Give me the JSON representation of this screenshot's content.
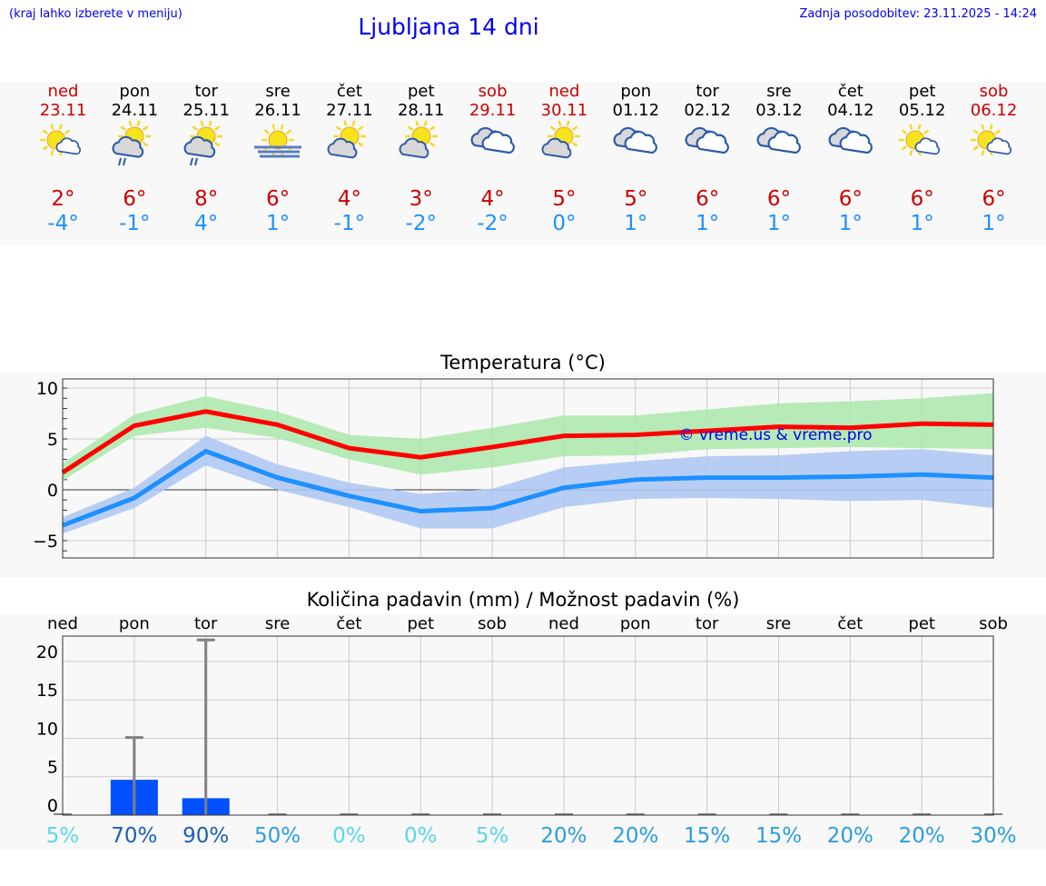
{
  "header": {
    "hint": "(kraj lahko izberete v meniju)",
    "title": "Ljubljana 14 dni",
    "updated": "Zadnja posodobitev: 23.11.2025 - 14:24"
  },
  "colors": {
    "weekend": "#cc0000",
    "weekday": "#000000",
    "max_temp": "#cc0000",
    "min_temp": "#1e90ff",
    "max_line": "#ff0000",
    "min_line": "#1e90ff",
    "max_band": "#aee8ae",
    "min_band": "#b0c8f2",
    "bar": "#0050ff"
  },
  "days": [
    {
      "name": "ned",
      "date": "23.11",
      "weekend": true,
      "icon": "sun-small-cloud",
      "max": "2°",
      "min": "-4°"
    },
    {
      "name": "pon",
      "date": "24.11",
      "weekend": false,
      "icon": "sun-cloud-rain",
      "max": "6°",
      "min": "-1°"
    },
    {
      "name": "tor",
      "date": "25.11",
      "weekend": false,
      "icon": "sun-cloud-rain",
      "max": "8°",
      "min": "4°"
    },
    {
      "name": "sre",
      "date": "26.11",
      "weekend": false,
      "icon": "sun-fog",
      "max": "6°",
      "min": "1°"
    },
    {
      "name": "čet",
      "date": "27.11",
      "weekend": false,
      "icon": "sun-cloud",
      "max": "4°",
      "min": "-1°"
    },
    {
      "name": "pet",
      "date": "28.11",
      "weekend": false,
      "icon": "sun-cloud",
      "max": "3°",
      "min": "-2°"
    },
    {
      "name": "sob",
      "date": "29.11",
      "weekend": true,
      "icon": "overcast",
      "max": "4°",
      "min": "-2°"
    },
    {
      "name": "ned",
      "date": "30.11",
      "weekend": true,
      "icon": "sun-cloud",
      "max": "5°",
      "min": "0°"
    },
    {
      "name": "pon",
      "date": "01.12",
      "weekend": false,
      "icon": "overcast",
      "max": "5°",
      "min": "1°"
    },
    {
      "name": "tor",
      "date": "02.12",
      "weekend": false,
      "icon": "overcast",
      "max": "6°",
      "min": "1°"
    },
    {
      "name": "sre",
      "date": "03.12",
      "weekend": false,
      "icon": "overcast",
      "max": "6°",
      "min": "1°"
    },
    {
      "name": "čet",
      "date": "04.12",
      "weekend": false,
      "icon": "overcast",
      "max": "6°",
      "min": "1°"
    },
    {
      "name": "pet",
      "date": "05.12",
      "weekend": false,
      "icon": "sun-small-cloud",
      "max": "6°",
      "min": "1°"
    },
    {
      "name": "sob",
      "date": "06.12",
      "weekend": true,
      "icon": "sun-small-cloud",
      "max": "6°",
      "min": "1°"
    }
  ],
  "chart_data": [
    {
      "type": "line",
      "title": "Temperatura (°C)",
      "watermark": "© vreme.us & vreme.pro",
      "ylim": [
        -6.7,
        10.9
      ],
      "yticks": [
        10,
        5,
        0,
        -5
      ],
      "ytick_labels": [
        "10",
        "5",
        "0",
        "−5"
      ],
      "grid": true,
      "series": [
        {
          "values": [
            1.7,
            6.3,
            7.7,
            6.4,
            4.1,
            3.2,
            4.2,
            5.3,
            5.4,
            5.8,
            6.2,
            6.1,
            6.5,
            6.4
          ],
          "band_upper": [
            2.6,
            7.4,
            9.2,
            7.7,
            5.4,
            5.0,
            6.1,
            7.3,
            7.3,
            7.9,
            8.5,
            8.7,
            9.0,
            9.5
          ],
          "band_lower": [
            0.9,
            5.3,
            6.1,
            5.1,
            3.0,
            1.5,
            2.2,
            3.3,
            3.4,
            4.0,
            4.1,
            4.2,
            4.1,
            4.0
          ]
        },
        {
          "values": [
            -3.5,
            -0.8,
            3.8,
            1.2,
            -0.6,
            -2.1,
            -1.8,
            0.2,
            1.0,
            1.2,
            1.2,
            1.3,
            1.5,
            1.2
          ],
          "band_upper": [
            -2.7,
            0.2,
            5.3,
            2.5,
            0.7,
            -0.4,
            0.1,
            2.2,
            2.8,
            3.3,
            3.4,
            3.8,
            4.0,
            3.4
          ],
          "band_lower": [
            -4.3,
            -1.8,
            2.4,
            0.0,
            -1.7,
            -3.8,
            -3.8,
            -1.7,
            -0.9,
            -0.8,
            -0.9,
            -1.1,
            -1.0,
            -1.8
          ]
        }
      ]
    },
    {
      "type": "bar",
      "title": "Količina padavin (mm) / Možnost padavin (%)",
      "categories": [
        "ned",
        "pon",
        "tor",
        "sre",
        "čet",
        "pet",
        "sob",
        "ned",
        "pon",
        "tor",
        "sre",
        "čet",
        "pet",
        "sob"
      ],
      "values": [
        0,
        4.6,
        2.2,
        0,
        0,
        0,
        0,
        0,
        0,
        0,
        0,
        0,
        0,
        0
      ],
      "error_upper": [
        0,
        10.1,
        22.8,
        0,
        0,
        0,
        0,
        0,
        0,
        0,
        0,
        0,
        0,
        0
      ],
      "probability_labels": [
        "5%",
        "70%",
        "90%",
        "50%",
        "0%",
        "0%",
        "5%",
        "20%",
        "20%",
        "15%",
        "15%",
        "20%",
        "20%",
        "30%"
      ],
      "probability": [
        5,
        70,
        90,
        50,
        0,
        0,
        5,
        20,
        20,
        15,
        15,
        20,
        20,
        30
      ],
      "ylim": [
        0,
        23.3
      ],
      "yticks": [
        0,
        5,
        10,
        15,
        20
      ],
      "grid": true
    }
  ]
}
